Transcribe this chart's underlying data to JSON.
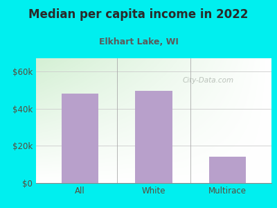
{
  "title": "Median per capita income in 2022",
  "subtitle": "Elkhart Lake, WI",
  "categories": [
    "All",
    "White",
    "Multirace"
  ],
  "values": [
    48000,
    49500,
    14000
  ],
  "bar_color": "#b8a0cb",
  "bg_color": "#00EFEF",
  "chart_bg_topleft": "#d4f0d4",
  "chart_bg_topright": "#f0f8f0",
  "chart_bg_bottomright": "#ffffff",
  "title_color": "#2a2a2a",
  "subtitle_color": "#5a5a5a",
  "axis_label_color": "#5a4a3a",
  "yticks": [
    0,
    20000,
    40000,
    60000
  ],
  "ytick_labels": [
    "$0",
    "$20k",
    "$40k",
    "$60k"
  ],
  "ylim": [
    0,
    67000
  ],
  "watermark": "City-Data.com",
  "watermark_color": "#b0b8b0",
  "title_fontsize": 12,
  "subtitle_fontsize": 9
}
